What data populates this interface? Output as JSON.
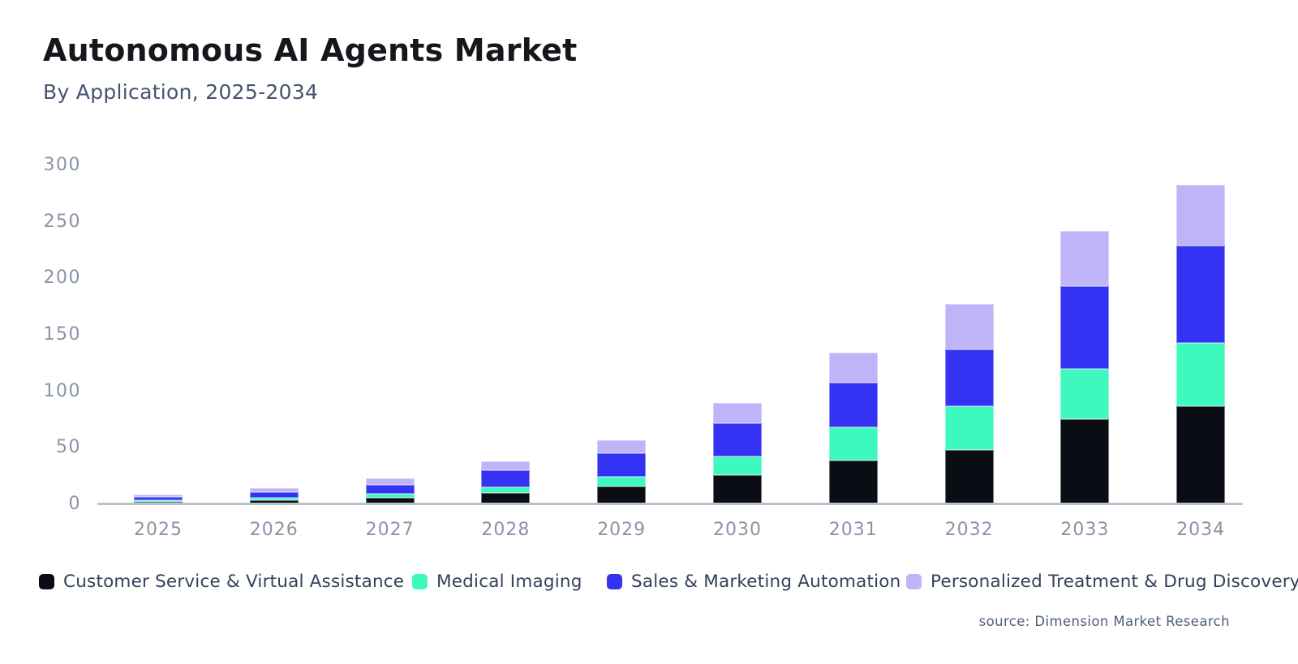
{
  "header": {
    "title": "Autonomous AI Agents Market",
    "subtitle": "By Application, 2025-2034"
  },
  "source_note": "source: Dimension Market Research",
  "colors": {
    "customer_service": "#0a0d13",
    "medical_imaging": "#3df9bd",
    "sales_marketing_automation": "#3533f3",
    "personalized_treatment": "#c0b4f8",
    "axis_line": "#b9c1ce",
    "tick_label": "#8a93a7",
    "legend_text": "#33415c",
    "title_text": "#15171c",
    "subtitle_text": "#46536f"
  },
  "chart_data": {
    "type": "bar",
    "stacked": true,
    "title": "Autonomous AI Agents Market",
    "subtitle": "By Application, 2025-2034",
    "xlabel": "",
    "ylabel": "",
    "ylim": [
      0,
      300
    ],
    "yticks": [
      0,
      50,
      100,
      150,
      200,
      250,
      300
    ],
    "grid": false,
    "legend_position": "bottom",
    "categories": [
      "2025",
      "2026",
      "2027",
      "2028",
      "2029",
      "2030",
      "2031",
      "2032",
      "2033",
      "2034"
    ],
    "series": [
      {
        "name": "Customer Service & Virtual Assistance",
        "color": "#0a0d13",
        "values": [
          2,
          3.5,
          5.5,
          10,
          16,
          26,
          39,
          48,
          75,
          87
        ]
      },
      {
        "name": "Medical Imaging",
        "color": "#3df9bd",
        "values": [
          1.7,
          2.5,
          3.5,
          5,
          8.5,
          16,
          29,
          39,
          45,
          56
        ]
      },
      {
        "name": "Sales & Marketing Automation",
        "color": "#3533f3",
        "values": [
          3,
          5,
          8.5,
          15,
          21,
          30,
          40,
          50,
          73,
          86
        ]
      },
      {
        "name": "Personalized Treatment & Drug Discovery",
        "color": "#c0b4f8",
        "values": [
          2.2,
          3,
          5.5,
          8,
          11.5,
          18,
          26,
          40,
          49,
          54
        ]
      }
    ],
    "totals": [
      8.9,
      14,
      23,
      38,
      57,
      90,
      134,
      177,
      242,
      283
    ]
  },
  "legend_layout_lefts": [
    48,
    508,
    748,
    1117
  ]
}
